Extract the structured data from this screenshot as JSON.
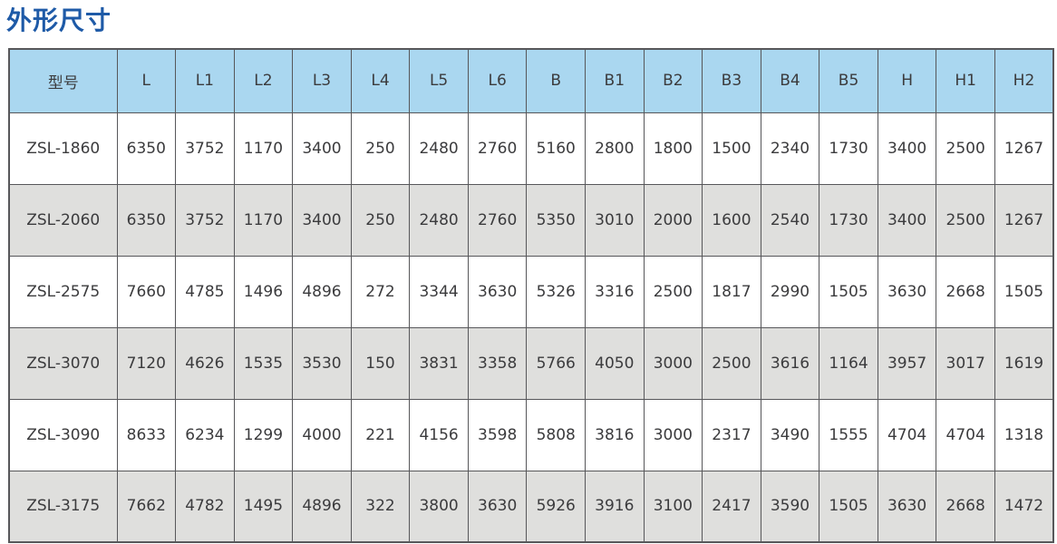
{
  "page": {
    "title": "外形尺寸"
  },
  "colors": {
    "title_text": "#1e5aa7",
    "header_bg": "#aad7f0",
    "row_bg_odd": "#ffffff",
    "row_bg_even": "#dfdfdd",
    "border": "#57575a",
    "cell_text": "#3b3b3d"
  },
  "table": {
    "headers": [
      "型号",
      "L",
      "L1",
      "L2",
      "L3",
      "L4",
      "L5",
      "L6",
      "B",
      "B1",
      "B2",
      "B3",
      "B4",
      "B5",
      "H",
      "H1",
      "H2"
    ],
    "rows": [
      [
        "ZSL-1860",
        "6350",
        "3752",
        "1170",
        "3400",
        "250",
        "2480",
        "2760",
        "5160",
        "2800",
        "1800",
        "1500",
        "2340",
        "1730",
        "3400",
        "2500",
        "1267"
      ],
      [
        "ZSL-2060",
        "6350",
        "3752",
        "1170",
        "3400",
        "250",
        "2480",
        "2760",
        "5350",
        "3010",
        "2000",
        "1600",
        "2540",
        "1730",
        "3400",
        "2500",
        "1267"
      ],
      [
        "ZSL-2575",
        "7660",
        "4785",
        "1496",
        "4896",
        "272",
        "3344",
        "3630",
        "5326",
        "3316",
        "2500",
        "1817",
        "2990",
        "1505",
        "3630",
        "2668",
        "1505"
      ],
      [
        "ZSL-3070",
        "7120",
        "4626",
        "1535",
        "3530",
        "150",
        "3831",
        "3358",
        "5766",
        "4050",
        "3000",
        "2500",
        "3616",
        "1164",
        "3957",
        "3017",
        "1619"
      ],
      [
        "ZSL-3090",
        "8633",
        "6234",
        "1299",
        "4000",
        "221",
        "4156",
        "3598",
        "5808",
        "3816",
        "3000",
        "2317",
        "3490",
        "1555",
        "4704",
        "4704",
        "1318"
      ],
      [
        "ZSL-3175",
        "7662",
        "4782",
        "1495",
        "4896",
        "322",
        "3800",
        "3630",
        "5926",
        "3916",
        "3100",
        "2417",
        "3590",
        "1505",
        "3630",
        "2668",
        "1472"
      ]
    ]
  }
}
